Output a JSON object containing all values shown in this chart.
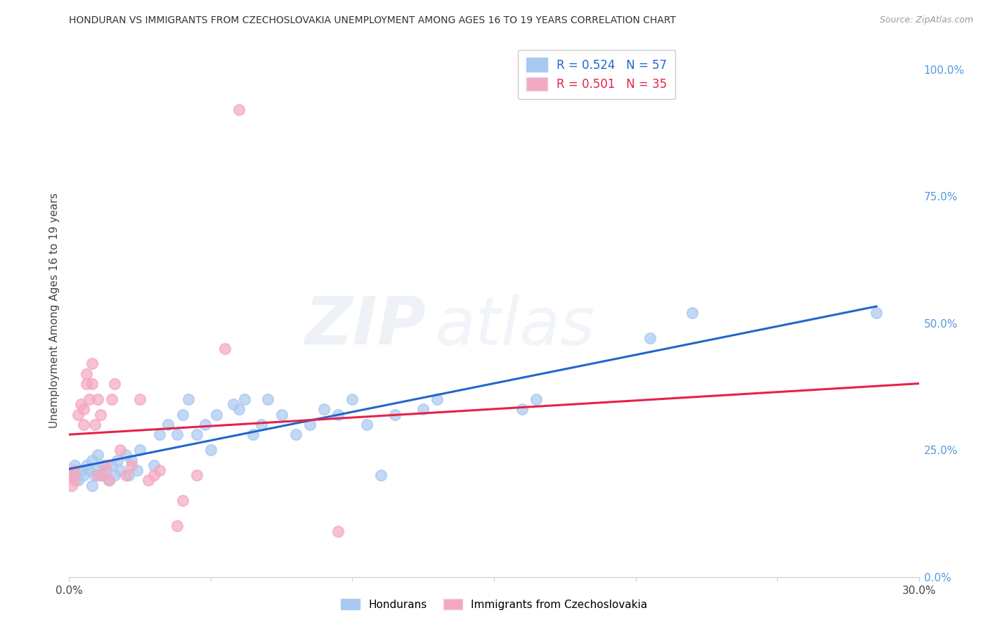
{
  "title": "HONDURAN VS IMMIGRANTS FROM CZECHOSLOVAKIA UNEMPLOYMENT AMONG AGES 16 TO 19 YEARS CORRELATION CHART",
  "source": "Source: ZipAtlas.com",
  "ylabel": "Unemployment Among Ages 16 to 19 years",
  "xmin": 0.0,
  "xmax": 0.3,
  "ymin": 0.0,
  "ymax": 1.05,
  "right_yticks": [
    0.0,
    0.25,
    0.5,
    0.75,
    1.0
  ],
  "right_yticklabels": [
    "0.0%",
    "25.0%",
    "50.0%",
    "75.0%",
    "100.0%"
  ],
  "xticks": [
    0.0,
    0.05,
    0.1,
    0.15,
    0.2,
    0.25,
    0.3
  ],
  "xticklabels": [
    "0.0%",
    "",
    "",
    "",
    "",
    "",
    "30.0%"
  ],
  "blue_R": 0.524,
  "blue_N": 57,
  "pink_R": 0.501,
  "pink_N": 35,
  "blue_color": "#a8c8f0",
  "pink_color": "#f4a8c0",
  "blue_line_color": "#2266cc",
  "pink_line_color": "#e8204a",
  "watermark_zip": "ZIP",
  "watermark_atlas": "atlas",
  "blue_points_x": [
    0.002,
    0.002,
    0.003,
    0.004,
    0.005,
    0.006,
    0.007,
    0.008,
    0.008,
    0.009,
    0.01,
    0.01,
    0.011,
    0.012,
    0.013,
    0.014,
    0.015,
    0.016,
    0.017,
    0.018,
    0.02,
    0.021,
    0.022,
    0.024,
    0.025,
    0.03,
    0.032,
    0.035,
    0.038,
    0.04,
    0.042,
    0.045,
    0.048,
    0.05,
    0.052,
    0.058,
    0.06,
    0.062,
    0.065,
    0.068,
    0.07,
    0.075,
    0.08,
    0.085,
    0.09,
    0.095,
    0.1,
    0.105,
    0.11,
    0.115,
    0.125,
    0.13,
    0.16,
    0.165,
    0.205,
    0.22,
    0.285
  ],
  "blue_points_y": [
    0.2,
    0.22,
    0.19,
    0.21,
    0.2,
    0.22,
    0.21,
    0.18,
    0.23,
    0.2,
    0.21,
    0.24,
    0.2,
    0.22,
    0.21,
    0.19,
    0.22,
    0.2,
    0.23,
    0.21,
    0.24,
    0.2,
    0.23,
    0.21,
    0.25,
    0.22,
    0.28,
    0.3,
    0.28,
    0.32,
    0.35,
    0.28,
    0.3,
    0.25,
    0.32,
    0.34,
    0.33,
    0.35,
    0.28,
    0.3,
    0.35,
    0.32,
    0.28,
    0.3,
    0.33,
    0.32,
    0.35,
    0.3,
    0.2,
    0.32,
    0.33,
    0.35,
    0.33,
    0.35,
    0.47,
    0.52,
    0.52
  ],
  "pink_points_x": [
    0.001,
    0.001,
    0.002,
    0.002,
    0.003,
    0.004,
    0.005,
    0.005,
    0.006,
    0.006,
    0.007,
    0.008,
    0.008,
    0.009,
    0.01,
    0.01,
    0.011,
    0.012,
    0.013,
    0.014,
    0.015,
    0.016,
    0.018,
    0.02,
    0.022,
    0.025,
    0.028,
    0.03,
    0.032,
    0.038,
    0.04,
    0.045,
    0.055,
    0.06,
    0.095
  ],
  "pink_points_y": [
    0.18,
    0.2,
    0.19,
    0.21,
    0.32,
    0.34,
    0.3,
    0.33,
    0.38,
    0.4,
    0.35,
    0.38,
    0.42,
    0.3,
    0.2,
    0.35,
    0.32,
    0.2,
    0.22,
    0.19,
    0.35,
    0.38,
    0.25,
    0.2,
    0.22,
    0.35,
    0.19,
    0.2,
    0.21,
    0.1,
    0.15,
    0.2,
    0.45,
    0.92,
    0.09
  ]
}
